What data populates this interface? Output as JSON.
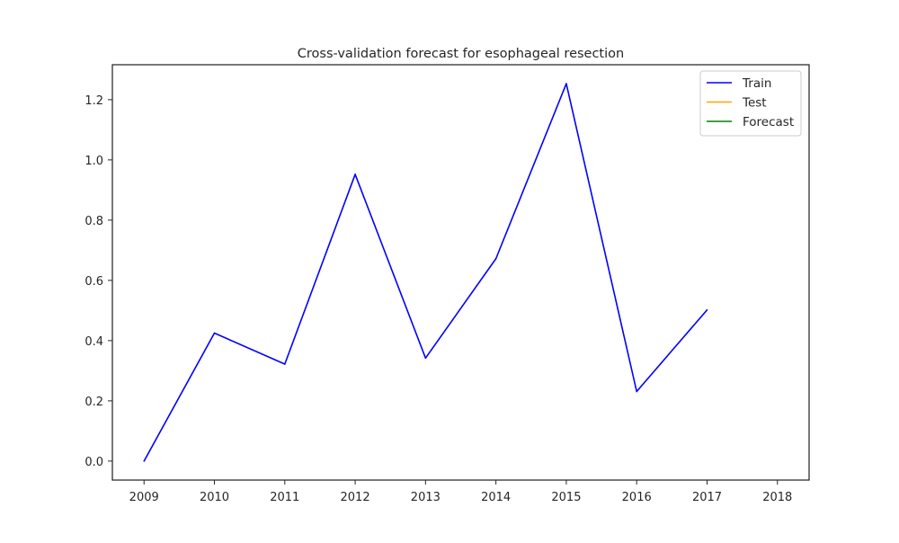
{
  "chart_data": {
    "type": "line",
    "title": "Cross-validation forecast for esophageal resection",
    "xlabel": "",
    "ylabel": "",
    "x_ticks": [
      "2009",
      "2010",
      "2011",
      "2012",
      "2013",
      "2014",
      "2015",
      "2016",
      "2017",
      "2018"
    ],
    "y_ticks": [
      "0.0",
      "0.2",
      "0.4",
      "0.6",
      "0.8",
      "1.0",
      "1.2"
    ],
    "xlim": [
      2008.55,
      2018.45
    ],
    "ylim": [
      -0.063,
      1.316
    ],
    "grid": false,
    "legend_position": "top-right",
    "series": [
      {
        "name": "Train",
        "color": "#0000ff",
        "x": [
          2009,
          2010,
          2011,
          2012,
          2013,
          2014,
          2015,
          2016,
          2017
        ],
        "y": [
          0.0,
          0.425,
          0.322,
          0.952,
          0.342,
          0.672,
          1.253,
          0.231,
          0.502
        ]
      },
      {
        "name": "Test",
        "color": "#ffa500",
        "x": [],
        "y": []
      },
      {
        "name": "Forecast",
        "color": "#008000",
        "x": [],
        "y": []
      }
    ]
  }
}
